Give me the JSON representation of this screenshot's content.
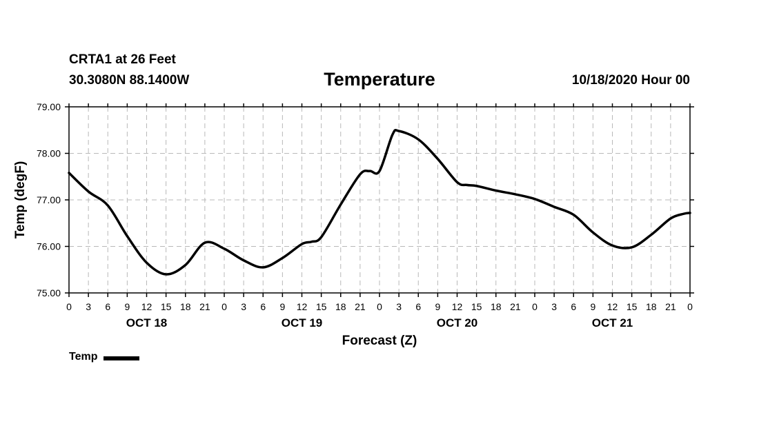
{
  "header": {
    "station": "CRTA1 at 26 Feet",
    "coords": "30.3080N 88.1400W",
    "title": "Temperature",
    "run": "10/18/2020 Hour 00"
  },
  "legend": {
    "label": "Temp",
    "color": "#000000"
  },
  "chart_data": {
    "type": "line",
    "title": "Temperature",
    "xlabel": "Forecast (Z)",
    "ylabel": "Temp (degF)",
    "ylim": [
      75.0,
      79.0
    ],
    "yticks": [
      "75.00",
      "76.00",
      "77.00",
      "78.00",
      "79.00"
    ],
    "xlim": [
      0,
      96
    ],
    "xticks": [
      "0",
      "3",
      "6",
      "9",
      "12",
      "15",
      "18",
      "21",
      "0",
      "3",
      "6",
      "9",
      "12",
      "15",
      "18",
      "21",
      "0",
      "3",
      "6",
      "9",
      "12",
      "15",
      "18",
      "21",
      "0",
      "3",
      "6",
      "9",
      "12",
      "15",
      "18",
      "21",
      "0"
    ],
    "day_labels": [
      {
        "label": "OCT 18",
        "hour": 12
      },
      {
        "label": "OCT 19",
        "hour": 36
      },
      {
        "label": "OCT 20",
        "hour": 60
      },
      {
        "label": "OCT 21",
        "hour": 84
      }
    ],
    "grid": true,
    "series": [
      {
        "name": "Temp",
        "x": [
          0,
          3,
          6,
          9,
          12,
          15,
          18,
          21,
          24,
          27,
          30,
          33,
          36,
          37.5,
          39,
          42,
          45,
          46.5,
          48,
          50,
          51,
          54,
          57,
          60,
          61.5,
          63,
          66,
          69,
          72,
          75,
          78,
          81,
          84,
          87,
          90,
          93,
          95,
          96
        ],
        "values": [
          77.58,
          77.18,
          76.88,
          76.22,
          75.65,
          75.4,
          75.6,
          76.08,
          75.95,
          75.7,
          75.55,
          75.75,
          76.05,
          76.1,
          76.2,
          76.9,
          77.55,
          77.62,
          77.62,
          78.4,
          78.48,
          78.3,
          77.88,
          77.38,
          77.32,
          77.3,
          77.2,
          77.12,
          77.02,
          76.85,
          76.68,
          76.3,
          76.02,
          75.98,
          76.25,
          76.6,
          76.7,
          76.72
        ]
      }
    ]
  }
}
